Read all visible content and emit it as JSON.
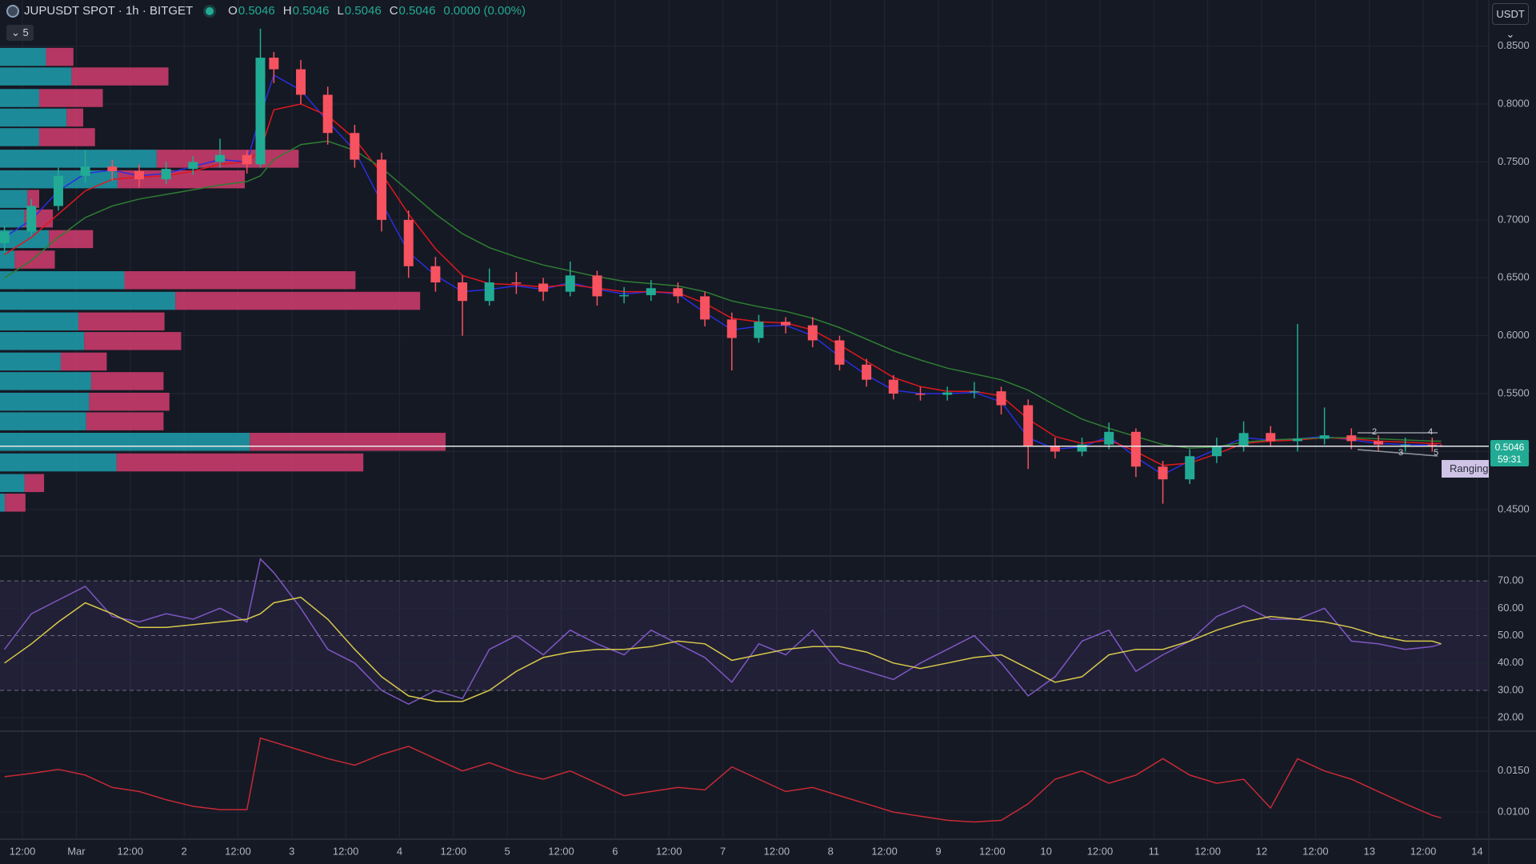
{
  "header": {
    "symbol": "JUPUSDT SPOT · 1h · BITGET",
    "ohlc": [
      {
        "label": "O",
        "value": "0.5046"
      },
      {
        "label": "H",
        "value": "0.5046"
      },
      {
        "label": "L",
        "value": "0.5046"
      },
      {
        "label": "C",
        "value": "0.5046"
      }
    ],
    "change": "0.0000 (0.00%)",
    "indicators_count": "5",
    "currency": "USDT"
  },
  "chart_data": [
    {
      "type": "candlestick",
      "x": [
        -16,
        -10,
        -4,
        2,
        8,
        14,
        20,
        26,
        32,
        38,
        41,
        44,
        50,
        56,
        62,
        68,
        74,
        80,
        86,
        92,
        98,
        104,
        110,
        116,
        122,
        128,
        134,
        140,
        146,
        152,
        158,
        164,
        170,
        176,
        182,
        188,
        194,
        200,
        206,
        212,
        218,
        224,
        230,
        236,
        242,
        248,
        254,
        260,
        266,
        272,
        278,
        284,
        290,
        296,
        302,
        304
      ],
      "candles": [
        [
          0.68,
          0.695,
          0.672,
          0.69
        ],
        [
          0.69,
          0.718,
          0.686,
          0.712
        ],
        [
          0.712,
          0.745,
          0.708,
          0.738
        ],
        [
          0.738,
          0.76,
          0.732,
          0.746
        ],
        [
          0.746,
          0.752,
          0.734,
          0.742
        ],
        [
          0.742,
          0.748,
          0.728,
          0.735
        ],
        [
          0.735,
          0.75,
          0.731,
          0.744
        ],
        [
          0.744,
          0.755,
          0.739,
          0.75
        ],
        [
          0.75,
          0.77,
          0.745,
          0.756
        ],
        [
          0.756,
          0.76,
          0.74,
          0.748
        ],
        [
          0.748,
          0.865,
          0.745,
          0.84
        ],
        [
          0.84,
          0.845,
          0.818,
          0.83
        ],
        [
          0.83,
          0.838,
          0.8,
          0.808
        ],
        [
          0.808,
          0.815,
          0.765,
          0.775
        ],
        [
          0.775,
          0.782,
          0.745,
          0.752
        ],
        [
          0.752,
          0.758,
          0.69,
          0.7
        ],
        [
          0.7,
          0.708,
          0.65,
          0.66
        ],
        [
          0.66,
          0.668,
          0.638,
          0.646
        ],
        [
          0.646,
          0.652,
          0.6,
          0.63
        ],
        [
          0.63,
          0.658,
          0.626,
          0.646
        ],
        [
          0.646,
          0.655,
          0.636,
          0.645
        ],
        [
          0.645,
          0.65,
          0.63,
          0.638
        ],
        [
          0.638,
          0.664,
          0.634,
          0.652
        ],
        [
          0.652,
          0.656,
          0.626,
          0.634
        ],
        [
          0.634,
          0.642,
          0.628,
          0.635
        ],
        [
          0.635,
          0.648,
          0.63,
          0.641
        ],
        [
          0.641,
          0.646,
          0.628,
          0.634
        ],
        [
          0.634,
          0.638,
          0.608,
          0.614
        ],
        [
          0.614,
          0.62,
          0.57,
          0.598
        ],
        [
          0.598,
          0.618,
          0.594,
          0.612
        ],
        [
          0.612,
          0.616,
          0.602,
          0.609
        ],
        [
          0.609,
          0.616,
          0.59,
          0.596
        ],
        [
          0.596,
          0.6,
          0.57,
          0.575
        ],
        [
          0.575,
          0.58,
          0.556,
          0.562
        ],
        [
          0.562,
          0.566,
          0.545,
          0.55
        ],
        [
          0.55,
          0.556,
          0.544,
          0.549
        ],
        [
          0.549,
          0.556,
          0.544,
          0.551
        ],
        [
          0.551,
          0.56,
          0.546,
          0.552
        ],
        [
          0.552,
          0.556,
          0.532,
          0.54
        ],
        [
          0.54,
          0.545,
          0.485,
          0.505
        ],
        [
          0.505,
          0.512,
          0.494,
          0.5
        ],
        [
          0.5,
          0.512,
          0.496,
          0.506
        ],
        [
          0.506,
          0.525,
          0.502,
          0.517
        ],
        [
          0.517,
          0.52,
          0.478,
          0.487
        ],
        [
          0.487,
          0.492,
          0.455,
          0.476
        ],
        [
          0.476,
          0.502,
          0.472,
          0.496
        ],
        [
          0.496,
          0.512,
          0.49,
          0.505
        ],
        [
          0.505,
          0.526,
          0.5,
          0.516
        ],
        [
          0.516,
          0.522,
          0.504,
          0.509
        ],
        [
          0.509,
          0.61,
          0.5,
          0.511
        ],
        [
          0.511,
          0.538,
          0.506,
          0.514
        ],
        [
          0.514,
          0.52,
          0.502,
          0.509
        ],
        [
          0.509,
          0.514,
          0.5,
          0.506
        ],
        [
          0.506,
          0.512,
          0.5,
          0.506
        ],
        [
          0.506,
          0.512,
          0.5,
          0.5052
        ],
        [
          0.5052,
          0.506,
          0.504,
          0.5046
        ]
      ],
      "up_color": "#22ab94",
      "down_color": "#f7525f",
      "series": [
        {
          "color": "#2a2ee0",
          "values": [
            0.685,
            0.7,
            0.725,
            0.74,
            0.743,
            0.738,
            0.74,
            0.746,
            0.752,
            0.75,
            0.79,
            0.825,
            0.812,
            0.785,
            0.76,
            0.715,
            0.672,
            0.652,
            0.638,
            0.64,
            0.643,
            0.64,
            0.646,
            0.64,
            0.636,
            0.638,
            0.636,
            0.62,
            0.605,
            0.608,
            0.609,
            0.6,
            0.582,
            0.566,
            0.553,
            0.55,
            0.55,
            0.551,
            0.543,
            0.512,
            0.502,
            0.504,
            0.513,
            0.495,
            0.48,
            0.492,
            0.502,
            0.512,
            0.51,
            0.511,
            0.513,
            0.51,
            0.507,
            0.506,
            0.5055,
            0.505
          ]
        },
        {
          "color": "#e0171e",
          "values": [
            0.67,
            0.685,
            0.705,
            0.725,
            0.735,
            0.737,
            0.738,
            0.742,
            0.748,
            0.75,
            0.76,
            0.795,
            0.8,
            0.79,
            0.77,
            0.74,
            0.705,
            0.675,
            0.652,
            0.645,
            0.644,
            0.642,
            0.644,
            0.641,
            0.638,
            0.638,
            0.637,
            0.628,
            0.615,
            0.612,
            0.611,
            0.605,
            0.592,
            0.578,
            0.564,
            0.556,
            0.552,
            0.552,
            0.548,
            0.528,
            0.513,
            0.507,
            0.51,
            0.5,
            0.488,
            0.49,
            0.498,
            0.507,
            0.509,
            0.51,
            0.512,
            0.511,
            0.509,
            0.508,
            0.507,
            0.507
          ]
        },
        {
          "color": "#2e7d32",
          "values": [
            0.65,
            0.665,
            0.685,
            0.702,
            0.712,
            0.718,
            0.722,
            0.726,
            0.73,
            0.733,
            0.738,
            0.752,
            0.765,
            0.768,
            0.76,
            0.745,
            0.725,
            0.705,
            0.688,
            0.676,
            0.668,
            0.661,
            0.656,
            0.651,
            0.647,
            0.645,
            0.643,
            0.638,
            0.63,
            0.625,
            0.621,
            0.615,
            0.607,
            0.597,
            0.587,
            0.579,
            0.572,
            0.567,
            0.562,
            0.553,
            0.54,
            0.528,
            0.52,
            0.513,
            0.506,
            0.503,
            0.504,
            0.508,
            0.51,
            0.511,
            0.512,
            0.512,
            0.511,
            0.51,
            0.509,
            0.509
          ]
        }
      ],
      "profile": {
        "buy_color": "#1f9fae",
        "sell_color": "#d23d6e",
        "levels": [
          0.8407,
          0.8238,
          0.8052,
          0.7883,
          0.7714,
          0.7528,
          0.735,
          0.7181,
          0.7012,
          0.6834,
          0.6657,
          0.6479,
          0.6301,
          0.6123,
          0.5954,
          0.5777,
          0.5608,
          0.543,
          0.5261,
          0.5084,
          0.4906,
          0.4728,
          0.4559
        ],
        "buy": [
          47,
          73,
          40,
          68,
          40,
          160,
          120,
          28,
          25,
          50,
          15,
          127,
          179,
          80,
          86,
          62,
          93,
          91,
          88,
          255,
          119,
          25,
          5
        ],
        "sell": [
          28,
          99,
          65,
          17,
          57,
          145,
          130,
          12,
          29,
          45,
          41,
          236,
          250,
          88,
          99,
          47,
          74,
          82,
          79,
          200,
          252,
          20,
          21
        ]
      },
      "last_price": {
        "value": 0.5046,
        "label": "0.5046"
      },
      "countdown": "59:31",
      "annotation": "Ranging C",
      "pattern_labels": [
        "2",
        "4",
        "3",
        "5"
      ],
      "xlim": [
        -17,
        314.6
      ],
      "xticks": [
        {
          "value": -12,
          "label": "12:00"
        },
        {
          "value": 0,
          "label": "Mar"
        },
        {
          "value": 12,
          "label": "12:00"
        },
        {
          "value": 24,
          "label": "2"
        },
        {
          "value": 36,
          "label": "12:00"
        },
        {
          "value": 48,
          "label": "3"
        },
        {
          "value": 60,
          "label": "12:00"
        },
        {
          "value": 72,
          "label": "4"
        },
        {
          "value": 84,
          "label": "12:00"
        },
        {
          "value": 96,
          "label": "5"
        },
        {
          "value": 108,
          "label": "12:00"
        },
        {
          "value": 120,
          "label": "6"
        },
        {
          "value": 132,
          "label": "12:00"
        },
        {
          "value": 144,
          "label": "7"
        },
        {
          "value": 156,
          "label": "12:00"
        },
        {
          "value": 168,
          "label": "8"
        },
        {
          "value": 180,
          "label": "12:00"
        },
        {
          "value": 192,
          "label": "9"
        },
        {
          "value": 204,
          "label": "12:00"
        },
        {
          "value": 216,
          "label": "10"
        },
        {
          "value": 228,
          "label": "12:00"
        },
        {
          "value": 240,
          "label": "11"
        },
        {
          "value": 252,
          "label": "12:00"
        },
        {
          "value": 264,
          "label": "12"
        },
        {
          "value": 276,
          "label": "12:00"
        },
        {
          "value": 288,
          "label": "13"
        },
        {
          "value": 300,
          "label": "12:00"
        },
        {
          "value": 312,
          "label": "14"
        }
      ],
      "ylim": [
        0.4119,
        0.8898
      ],
      "yticks": [
        {
          "value": 0.45,
          "label": "0.4500"
        },
        {
          "value": 0.5,
          "label": "0.5000"
        },
        {
          "value": 0.55,
          "label": "0.5500"
        },
        {
          "value": 0.6,
          "label": "0.6000"
        },
        {
          "value": 0.65,
          "label": "0.6500"
        },
        {
          "value": 0.7,
          "label": "0.7000"
        },
        {
          "value": 0.75,
          "label": "0.7500"
        },
        {
          "value": 0.8,
          "label": "0.8000"
        },
        {
          "value": 0.85,
          "label": "0.8500"
        }
      ],
      "grid": true
    },
    {
      "type": "line",
      "x": [
        -16,
        -10,
        -4,
        2,
        8,
        14,
        20,
        26,
        32,
        38,
        41,
        44,
        50,
        56,
        62,
        68,
        74,
        80,
        86,
        92,
        98,
        104,
        110,
        116,
        122,
        128,
        134,
        140,
        146,
        152,
        158,
        164,
        170,
        176,
        182,
        188,
        194,
        200,
        206,
        212,
        218,
        224,
        230,
        236,
        242,
        248,
        254,
        260,
        266,
        272,
        278,
        284,
        290,
        296,
        302,
        304
      ],
      "series": [
        {
          "color": "#7e57c2",
          "values": [
            45,
            58,
            63,
            68,
            57,
            55,
            58,
            56,
            60,
            55,
            78,
            73,
            60,
            45,
            40,
            30,
            25,
            30,
            27,
            45,
            50,
            43,
            52,
            47,
            43,
            52,
            47,
            42,
            33,
            47,
            43,
            52,
            40,
            37,
            34,
            40,
            45,
            50,
            40,
            28,
            35,
            48,
            52,
            37,
            43,
            48,
            57,
            61,
            56,
            56,
            60,
            48,
            47,
            45,
            46,
            47
          ]
        },
        {
          "color": "#d8c84a",
          "values": [
            40,
            47,
            55,
            62,
            58,
            53,
            53,
            54,
            55,
            56,
            58,
            62,
            64,
            56,
            45,
            35,
            28,
            26,
            26,
            30,
            37,
            42,
            44,
            45,
            45,
            46,
            48,
            47,
            41,
            43,
            45,
            46,
            46,
            44,
            40,
            38,
            40,
            42,
            43,
            38,
            33,
            35,
            43,
            45,
            45,
            48,
            52,
            55,
            57,
            56,
            55,
            53,
            50,
            48,
            48,
            47
          ]
        }
      ],
      "band": {
        "from": 30,
        "to": 70
      },
      "dashed_levels": [
        30,
        50,
        70
      ],
      "ylim": [
        15.7,
        78.2
      ],
      "yticks": [
        {
          "value": 20,
          "label": "20.00"
        },
        {
          "value": 30,
          "label": "30.00"
        },
        {
          "value": 40,
          "label": "40.00"
        },
        {
          "value": 50,
          "label": "50.00"
        },
        {
          "value": 60,
          "label": "60.00"
        },
        {
          "value": 70,
          "label": "70.00"
        }
      ],
      "grid": true
    },
    {
      "type": "line",
      "x": [
        -16,
        -10,
        -4,
        2,
        8,
        14,
        20,
        26,
        32,
        38,
        41,
        44,
        50,
        56,
        62,
        68,
        74,
        80,
        86,
        92,
        98,
        104,
        110,
        116,
        122,
        128,
        134,
        140,
        146,
        152,
        158,
        164,
        170,
        176,
        182,
        188,
        194,
        200,
        206,
        212,
        218,
        224,
        230,
        236,
        242,
        248,
        254,
        260,
        266,
        272,
        278,
        284,
        290,
        296,
        302,
        304
      ],
      "series": [
        {
          "color": "#c62a36",
          "values": [
            0.0143,
            0.0147,
            0.0152,
            0.0145,
            0.013,
            0.0125,
            0.0115,
            0.0107,
            0.0103,
            0.0103,
            0.019,
            0.0185,
            0.0175,
            0.0165,
            0.0157,
            0.017,
            0.018,
            0.0165,
            0.015,
            0.016,
            0.0148,
            0.014,
            0.015,
            0.0135,
            0.012,
            0.0125,
            0.013,
            0.0127,
            0.0155,
            0.014,
            0.0125,
            0.013,
            0.012,
            0.011,
            0.01,
            0.0095,
            0.009,
            0.0088,
            0.009,
            0.011,
            0.014,
            0.015,
            0.0135,
            0.0145,
            0.0165,
            0.0145,
            0.0135,
            0.014,
            0.0105,
            0.0165,
            0.015,
            0.014,
            0.0125,
            0.011,
            0.0096,
            0.0093
          ]
        }
      ],
      "ylim": [
        0.0069,
        0.01964
      ],
      "yticks": [
        {
          "value": 0.01,
          "label": "0.0100"
        },
        {
          "value": 0.015,
          "label": "0.0150"
        }
      ],
      "grid": true
    }
  ]
}
